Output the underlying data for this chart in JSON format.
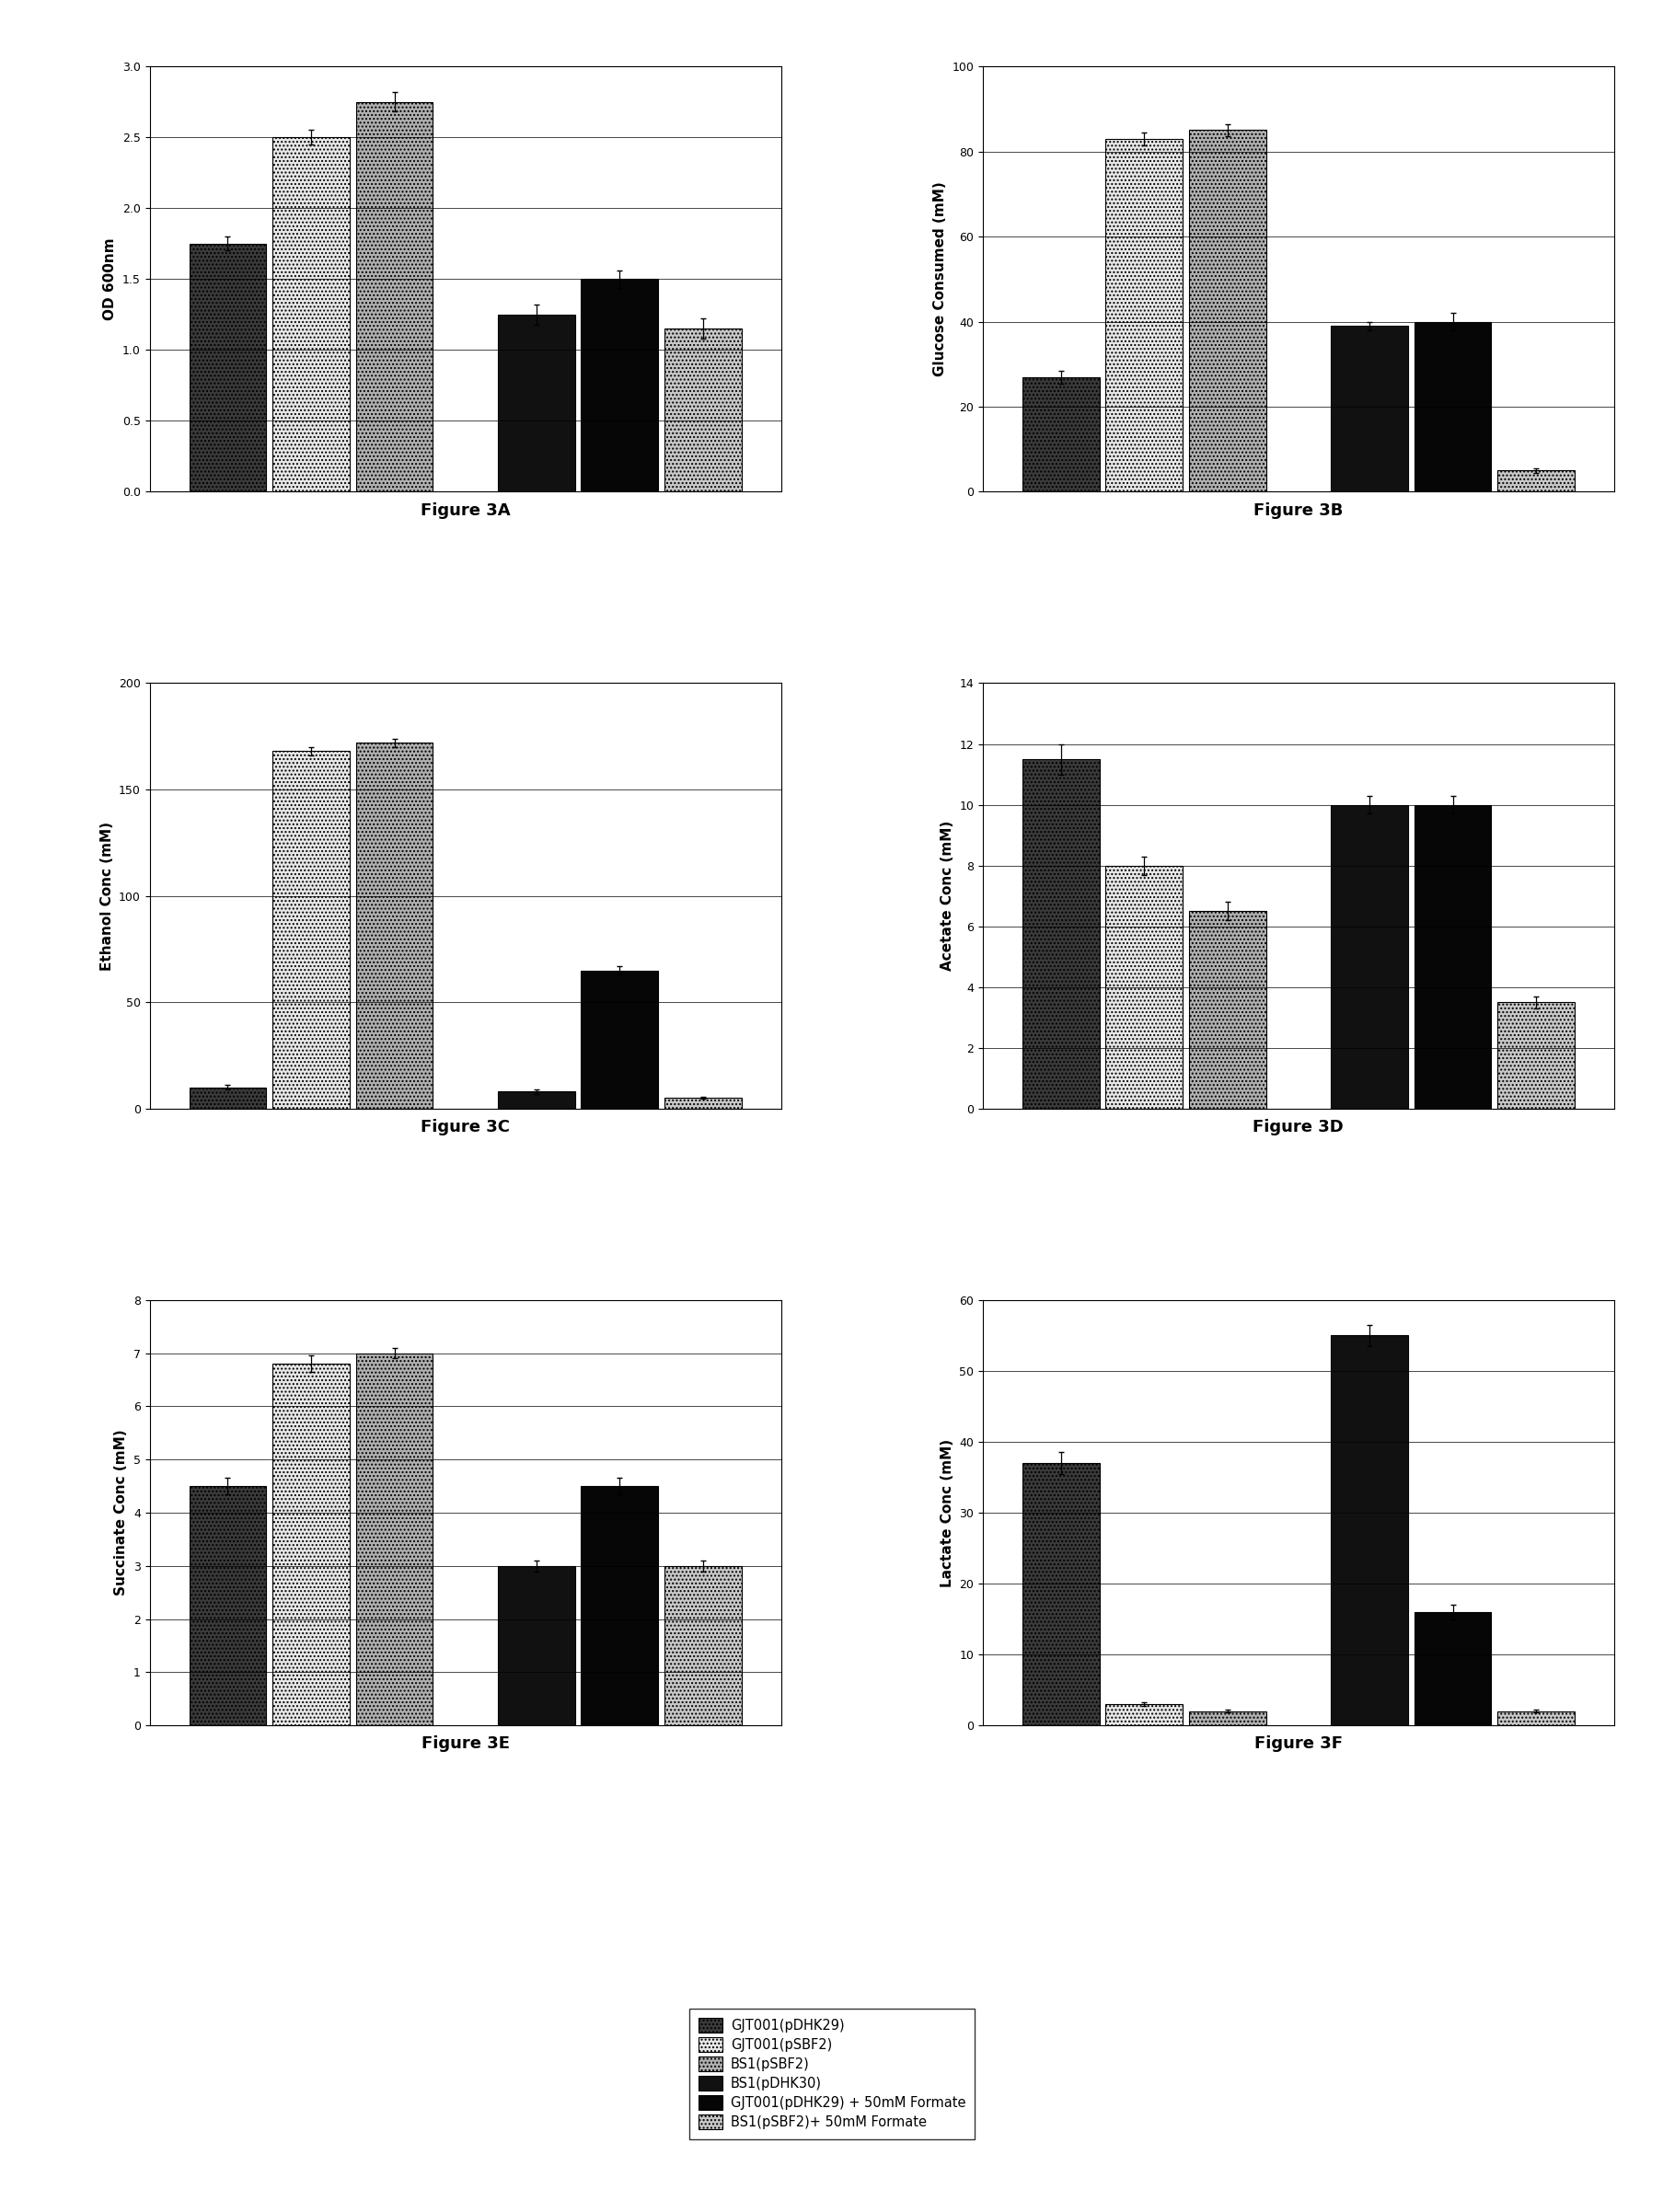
{
  "fig3A": {
    "title": "Figure 3A",
    "ylabel": "OD 600nm",
    "ylim": [
      0,
      3
    ],
    "yticks": [
      0,
      0.5,
      1.0,
      1.5,
      2.0,
      2.5,
      3.0
    ],
    "all_values": [
      1.75,
      2.5,
      2.75,
      1.25,
      1.5,
      1.15
    ],
    "all_errors": [
      0.05,
      0.05,
      0.07,
      0.07,
      0.06,
      0.07
    ]
  },
  "fig3B": {
    "title": "Figure 3B",
    "ylabel": "Glucose Consumed (mM)",
    "ylim": [
      0,
      100
    ],
    "yticks": [
      0,
      20,
      40,
      60,
      80,
      100
    ],
    "all_values": [
      27,
      83,
      85,
      39,
      40,
      5
    ],
    "all_errors": [
      1.5,
      1.5,
      1.5,
      1.0,
      2.0,
      0.5
    ]
  },
  "fig3C": {
    "title": "Figure 3C",
    "ylabel": "Ethanol Conc (mM)",
    "ylim": [
      0,
      200
    ],
    "yticks": [
      0,
      50,
      100,
      150,
      200
    ],
    "all_values": [
      10,
      168,
      172,
      8,
      65,
      5
    ],
    "all_errors": [
      1.0,
      2.0,
      2.0,
      1.0,
      2.0,
      0.5
    ]
  },
  "fig3D": {
    "title": "Figure 3D",
    "ylabel": "Acetate Conc (mM)",
    "ylim": [
      0,
      14
    ],
    "yticks": [
      0,
      2,
      4,
      6,
      8,
      10,
      12,
      14
    ],
    "all_values": [
      11.5,
      8.0,
      6.5,
      10.0,
      10.0,
      3.5
    ],
    "all_errors": [
      0.5,
      0.3,
      0.3,
      0.3,
      0.3,
      0.2
    ]
  },
  "fig3E": {
    "title": "Figure 3E",
    "ylabel": "Succinate Conc (mM)",
    "ylim": [
      0,
      8
    ],
    "yticks": [
      0,
      1,
      2,
      3,
      4,
      5,
      6,
      7,
      8
    ],
    "all_values": [
      4.5,
      6.8,
      7.0,
      3.0,
      4.5,
      3.0
    ],
    "all_errors": [
      0.15,
      0.15,
      0.1,
      0.1,
      0.15,
      0.1
    ]
  },
  "fig3F": {
    "title": "Figure 3F",
    "ylabel": "Lactate Conc (mM)",
    "ylim": [
      0,
      60
    ],
    "yticks": [
      0,
      10,
      20,
      30,
      40,
      50,
      60
    ],
    "all_values": [
      37,
      3,
      2,
      55,
      16,
      2
    ],
    "all_errors": [
      1.5,
      0.3,
      0.2,
      1.5,
      1.0,
      0.2
    ]
  },
  "legend_labels": [
    "GJT001(pDHK29)",
    "GJT001(pSBF2)",
    "BS1(pSBF2)",
    "BS1(pDHK30)",
    "GJT001(pDHK29) + 50mM Formate",
    "BS1(pSBF2)+ 50mM Formate"
  ],
  "bar_facecolors": [
    "#3a3a3a",
    "#e8e8e8",
    "#b0b0b0",
    "#111111",
    "#060606",
    "#c8c8c8"
  ],
  "bar_hatches": [
    "....",
    "....",
    "....",
    "",
    "",
    "...."
  ],
  "bar_edgecolors": [
    "black",
    "black",
    "black",
    "black",
    "black",
    "black"
  ]
}
